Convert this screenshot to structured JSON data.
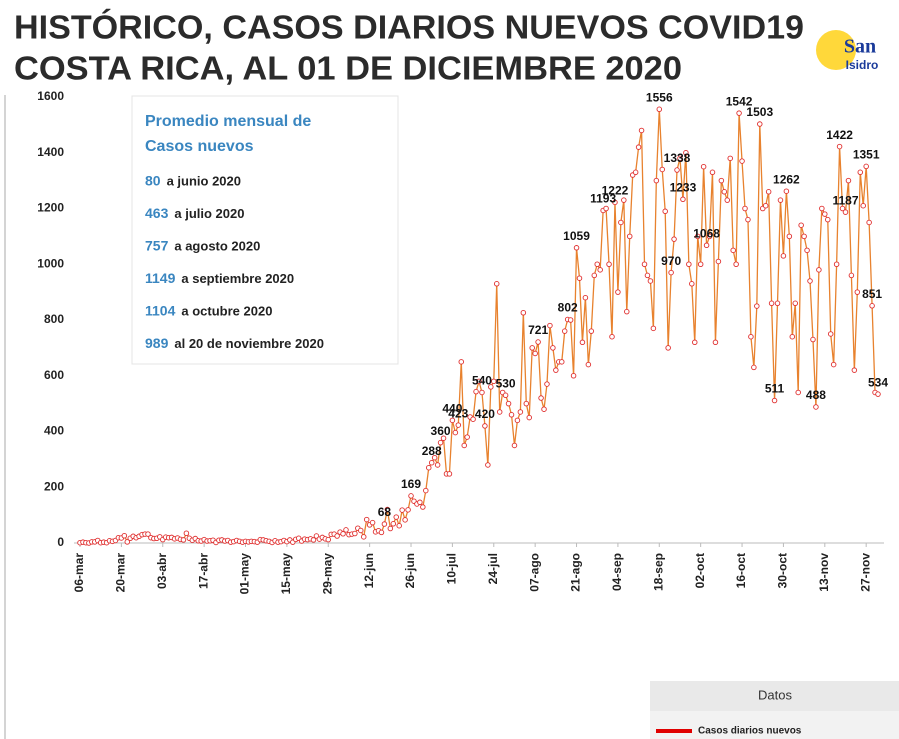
{
  "chart_data": {
    "type": "line",
    "title": [
      "HISTÓRICO, CASOS DIARIOS NUEVOS COVID19",
      "COSTA RICA, AL 01 DE DICIEMBRE 2020"
    ],
    "logo": [
      "San",
      "Isidro"
    ],
    "categories": [
      "06-mar",
      null,
      null,
      null,
      null,
      null,
      null,
      null,
      null,
      null,
      null,
      null,
      null,
      null,
      "20-mar",
      null,
      null,
      null,
      null,
      null,
      null,
      null,
      null,
      null,
      null,
      null,
      null,
      null,
      "03-abr",
      null,
      null,
      null,
      null,
      null,
      null,
      null,
      null,
      null,
      null,
      null,
      null,
      null,
      "17-abr",
      null,
      null,
      null,
      null,
      null,
      null,
      null,
      null,
      null,
      null,
      null,
      null,
      null,
      "01-may",
      null,
      null,
      null,
      null,
      null,
      null,
      null,
      null,
      null,
      null,
      null,
      null,
      null,
      "15-may",
      null,
      null,
      null,
      null,
      null,
      null,
      null,
      null,
      null,
      null,
      null,
      null,
      null,
      "29-may",
      null,
      null,
      null,
      null,
      null,
      null,
      null,
      null,
      null,
      null,
      null,
      null,
      null,
      "12-jun",
      null,
      null,
      null,
      null,
      null,
      null,
      null,
      null,
      null,
      null,
      null,
      null,
      null,
      "26-jun",
      null,
      null,
      null,
      null,
      null,
      null,
      null,
      null,
      null,
      null,
      null,
      null,
      null,
      "10-jul",
      null,
      null,
      null,
      null,
      null,
      null,
      null,
      null,
      null,
      null,
      null,
      null,
      null,
      "24-jul",
      null,
      null,
      null,
      null,
      null,
      null,
      null,
      null,
      null,
      null,
      null,
      null,
      null,
      "07-ago",
      null,
      null,
      null,
      null,
      null,
      null,
      null,
      null,
      null,
      null,
      null,
      null,
      null,
      "21-ago",
      null,
      null,
      null,
      null,
      null,
      null,
      null,
      null,
      null,
      null,
      null,
      null,
      null,
      "04-sep",
      null,
      null,
      null,
      null,
      null,
      null,
      null,
      null,
      null,
      null,
      null,
      null,
      null,
      "18-sep",
      null,
      null,
      null,
      null,
      null,
      null,
      null,
      null,
      null,
      null,
      null,
      null,
      null,
      "02-oct",
      null,
      null,
      null,
      null,
      null,
      null,
      null,
      null,
      null,
      null,
      null,
      null,
      null,
      "16-oct",
      null,
      null,
      null,
      null,
      null,
      null,
      null,
      null,
      null,
      null,
      null,
      null,
      null,
      "30-oct",
      null,
      null,
      null,
      null,
      null,
      null,
      null,
      null,
      null,
      null,
      null,
      null,
      null,
      "13-nov",
      null,
      null,
      null,
      null,
      null,
      null,
      null,
      null,
      null,
      null,
      null,
      null,
      null,
      "27-nov",
      null,
      null,
      null,
      null
    ],
    "series": [
      {
        "name": "Casos diarios nuevos",
        "color": "#e8822e",
        "marker_color": "#e03030",
        "values": [
          1,
          3,
          1,
          0,
          4,
          4,
          9,
          1,
          3,
          1,
          8,
          6,
          9,
          19,
          18,
          26,
          4,
          17,
          24,
          19,
          24,
          30,
          32,
          32,
          19,
          16,
          17,
          22,
          12,
          21,
          19,
          20,
          15,
          18,
          13,
          11,
          35,
          17,
          10,
          16,
          8,
          7,
          12,
          7,
          8,
          10,
          2,
          10,
          11,
          7,
          9,
          3,
          5,
          9,
          6,
          3,
          6,
          4,
          6,
          5,
          3,
          12,
          11,
          8,
          6,
          2,
          8,
          3,
          5,
          9,
          5,
          11,
          3,
          13,
          17,
          7,
          14,
          12,
          15,
          11,
          25,
          14,
          20,
          15,
          12,
          31,
          32,
          25,
          39,
          33,
          47,
          30,
          32,
          34,
          53,
          45,
          22,
          84,
          65,
          73,
          40,
          44,
          38,
          68,
          120,
          52,
          69,
          93,
          62,
          118,
          83,
          119,
          169,
          150,
          140,
          146,
          129,
          188,
          270,
          288,
          306,
          280,
          360,
          376,
          248,
          248,
          440,
          396,
          423,
          650,
          350,
          380,
          452,
          444,
          543,
          580,
          540,
          420,
          280,
          560,
          580,
          930,
          470,
          540,
          530,
          500,
          460,
          350,
          440,
          470,
          826,
          500,
          450,
          700,
          680,
          721,
          520,
          480,
          570,
          780,
          700,
          620,
          650,
          650,
          760,
          802,
          800,
          600,
          1059,
          950,
          720,
          880,
          640,
          760,
          960,
          1000,
          980,
          1193,
          1200,
          1000,
          740,
          1222,
          900,
          1150,
          1230,
          830,
          1100,
          1320,
          1330,
          1420,
          1480,
          1000,
          960,
          940,
          770,
          1300,
          1556,
          1340,
          1190,
          700,
          970,
          1090,
          1338,
          1380,
          1233,
          1400,
          1000,
          930,
          720,
          1100,
          1000,
          1350,
          1068,
          1100,
          1330,
          720,
          1010,
          1300,
          1260,
          1230,
          1380,
          1050,
          1000,
          1542,
          1370,
          1200,
          1160,
          740,
          630,
          850,
          1503,
          1200,
          1210,
          1260,
          860,
          511,
          860,
          1230,
          1030,
          1262,
          1100,
          740,
          860,
          540,
          1140,
          1100,
          1050,
          940,
          730,
          488,
          980,
          1200,
          1180,
          1160,
          750,
          640,
          1000,
          1422,
          1200,
          1187,
          1300,
          960,
          620,
          900,
          1330,
          1210,
          1351,
          1150,
          851,
          540,
          534
        ],
        "value_labels": [
          null,
          null,
          null,
          null,
          null,
          null,
          null,
          null,
          null,
          null,
          null,
          null,
          null,
          null,
          null,
          null,
          null,
          null,
          null,
          null,
          null,
          null,
          null,
          null,
          null,
          null,
          null,
          null,
          null,
          null,
          null,
          null,
          null,
          null,
          null,
          null,
          null,
          null,
          null,
          null,
          null,
          null,
          null,
          null,
          null,
          null,
          null,
          null,
          null,
          null,
          null,
          null,
          null,
          null,
          null,
          null,
          null,
          null,
          null,
          null,
          null,
          null,
          null,
          null,
          null,
          null,
          null,
          null,
          null,
          null,
          null,
          null,
          null,
          null,
          null,
          null,
          null,
          null,
          null,
          null,
          null,
          null,
          null,
          null,
          null,
          null,
          null,
          null,
          null,
          null,
          null,
          null,
          null,
          null,
          null,
          null,
          null,
          null,
          null,
          null,
          null,
          null,
          null,
          "68",
          null,
          null,
          null,
          null,
          null,
          null,
          null,
          null,
          "169",
          null,
          null,
          null,
          null,
          null,
          null,
          "288",
          null,
          null,
          "360",
          null,
          null,
          null,
          "440",
          null,
          "423",
          null,
          null,
          null,
          null,
          null,
          null,
          null,
          "540",
          "420",
          null,
          null,
          null,
          null,
          null,
          null,
          "530",
          null,
          null,
          null,
          null,
          null,
          null,
          null,
          null,
          null,
          null,
          "721",
          null,
          null,
          null,
          null,
          null,
          null,
          null,
          null,
          null,
          "802",
          null,
          null,
          "1059",
          null,
          null,
          null,
          null,
          null,
          null,
          null,
          null,
          "1193",
          null,
          null,
          null,
          "1222",
          null,
          null,
          null,
          null,
          null,
          null,
          null,
          null,
          null,
          null,
          null,
          null,
          null,
          null,
          "1556",
          null,
          null,
          null,
          "970",
          null,
          "1338",
          null,
          "1233",
          null,
          null,
          null,
          null,
          null,
          null,
          null,
          "1068",
          null,
          null,
          null,
          null,
          null,
          null,
          null,
          null,
          null,
          null,
          "1542",
          null,
          null,
          null,
          null,
          null,
          null,
          "1503",
          null,
          null,
          null,
          null,
          "511",
          null,
          null,
          null,
          "1262",
          null,
          null,
          null,
          null,
          null,
          null,
          null,
          null,
          null,
          "488",
          null,
          null,
          null,
          null,
          null,
          null,
          null,
          "1422",
          null,
          "1187",
          null,
          null,
          null,
          null,
          null,
          null,
          "1351",
          null,
          "851",
          null,
          "534"
        ]
      }
    ],
    "ylim": [
      0,
      1600
    ],
    "yticks": [
      0,
      200,
      400,
      600,
      800,
      1000,
      1200,
      1400,
      1600
    ],
    "grid": false,
    "info_box": {
      "title": [
        "Promedio mensual de",
        "Casos nuevos"
      ],
      "items": [
        {
          "value": 80,
          "text": "a junio 2020"
        },
        {
          "value": 463,
          "text": "a julio 2020"
        },
        {
          "value": 757,
          "text": "a agosto 2020"
        },
        {
          "value": 1149,
          "text": "a septiembre 2020"
        },
        {
          "value": 1104,
          "text": "a octubre 2020"
        },
        {
          "value": 989,
          "text": "al 20 de noviembre 2020"
        }
      ]
    },
    "legend": {
      "title": "Datos",
      "position": "bottom-right"
    }
  }
}
